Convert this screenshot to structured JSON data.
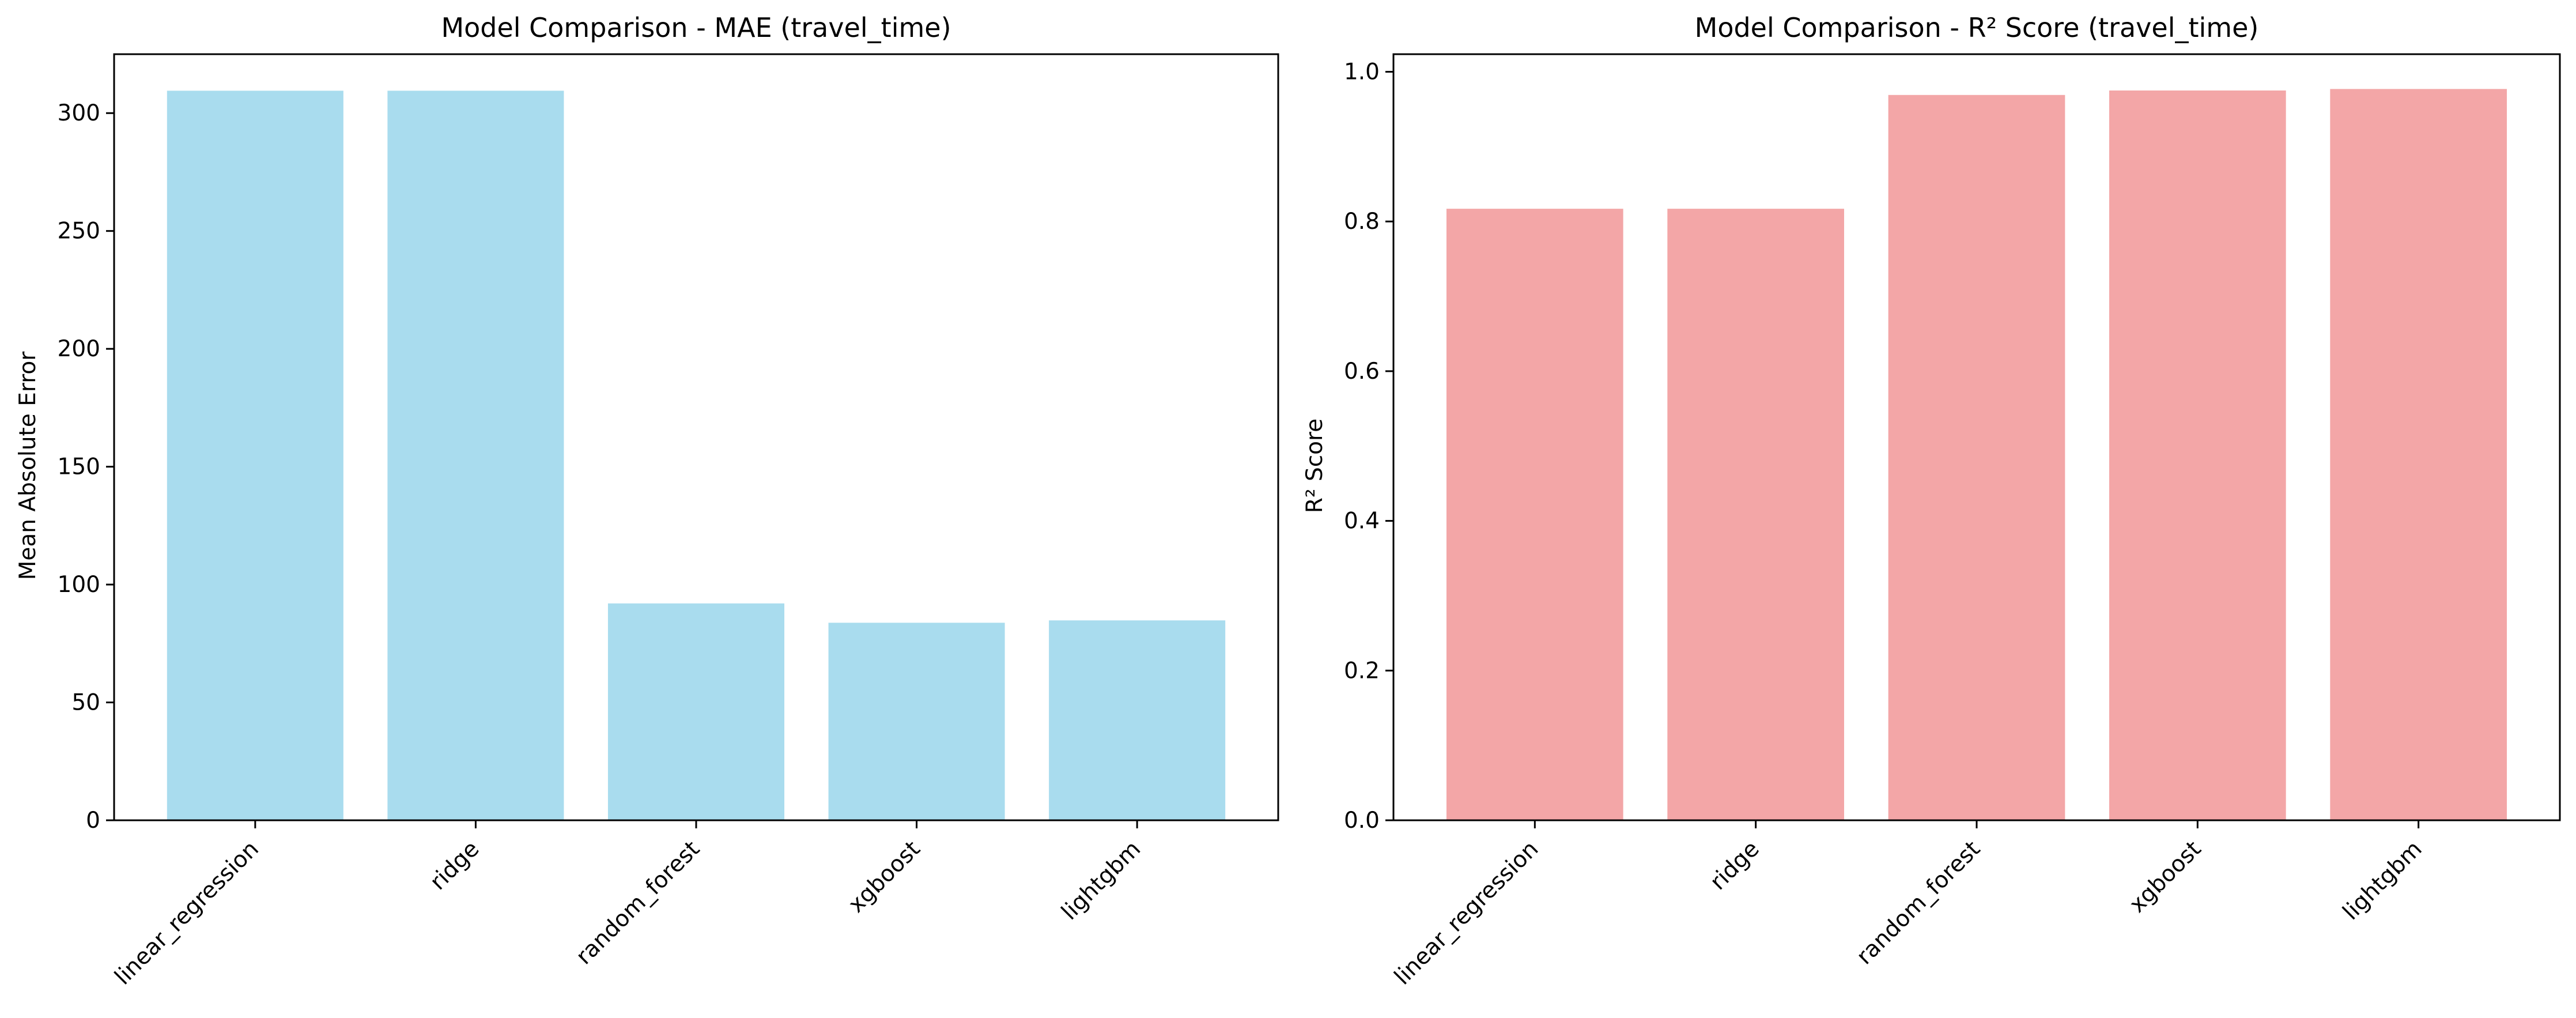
{
  "chart_data": [
    {
      "type": "bar",
      "title": "Model Comparison - MAE (travel_time)",
      "xlabel": "",
      "ylabel": "Mean Absolute Error",
      "categories": [
        "linear_regression",
        "ridge",
        "random_forest",
        "xgboost",
        "lightgbm"
      ],
      "values": [
        309.5,
        309.5,
        92.0,
        83.8,
        84.8
      ],
      "ylim": [
        0,
        325
      ],
      "yticks": [
        0,
        50,
        100,
        150,
        200,
        250,
        300
      ],
      "tick_labels": [
        "0",
        "50",
        "100",
        "150",
        "200",
        "250",
        "300"
      ],
      "color": "#a9dcee",
      "grid": false,
      "legend": "none"
    },
    {
      "type": "bar",
      "title": "Model Comparison - R² Score (travel_time)",
      "xlabel": "",
      "ylabel": "R² Score",
      "categories": [
        "linear_regression",
        "ridge",
        "random_forest",
        "xgboost",
        "lightgbm"
      ],
      "values": [
        0.817,
        0.817,
        0.969,
        0.975,
        0.977
      ],
      "ylim": [
        0,
        1.0235
      ],
      "yticks": [
        0.0,
        0.2,
        0.4,
        0.6,
        0.8,
        1.0
      ],
      "tick_labels": [
        "0.0",
        "0.2",
        "0.4",
        "0.6",
        "0.8",
        "1.0"
      ],
      "color": "#f3a6a7",
      "grid": false,
      "legend": "none"
    }
  ]
}
